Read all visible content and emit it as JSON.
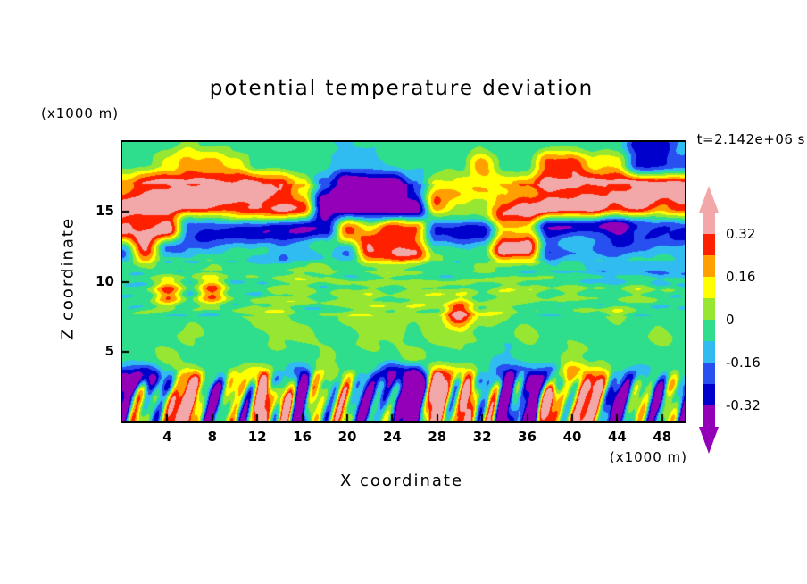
{
  "chart_data": {
    "type": "heatmap",
    "title": "potential temperature deviation",
    "time_label": "t=2.142e+06 s",
    "axis": {
      "x_label": "X coordinate",
      "y_label": "Z coordinate",
      "x_units": "(x1000 m)",
      "y_units": "(x1000 m)",
      "x_ticks": [
        4,
        8,
        12,
        16,
        20,
        24,
        28,
        32,
        36,
        40,
        44,
        48
      ],
      "y_ticks": [
        5,
        10,
        15
      ],
      "x_range": [
        0,
        50
      ],
      "y_range": [
        0,
        20
      ]
    },
    "colorbar_labels": [
      "0.32",
      "0.16",
      "0",
      "-0.16",
      "-0.32"
    ],
    "levels": [
      -0.4,
      -0.32,
      -0.24,
      -0.16,
      -0.08,
      0,
      0.08,
      0.16,
      0.24,
      0.32,
      0.4
    ],
    "level_colors": [
      "#9400B8",
      "#0000CC",
      "#2850F0",
      "#30BCF0",
      "#2EDE8C",
      "#96E632",
      "#FFFF00",
      "#FFA000",
      "#FF2000",
      "#F2A8A8"
    ],
    "x": [
      0,
      2,
      4,
      6,
      8,
      10,
      12,
      14,
      16,
      18,
      20,
      22,
      24,
      26,
      28,
      30,
      32,
      34,
      36,
      38,
      40,
      42,
      44,
      46,
      48,
      50
    ],
    "z": [
      20,
      18.46,
      16.92,
      15.38,
      13.85,
      12.31,
      10.77,
      9.23,
      7.69,
      6.15,
      4.62,
      3.08,
      1.54,
      0
    ],
    "values": [
      [
        -0.04,
        -0.04,
        -0.04,
        0.04,
        -0.04,
        -0.04,
        -0.04,
        -0.04,
        -0.04,
        -0.04,
        -0.12,
        -0.04,
        -0.04,
        -0.04,
        -0.04,
        -0.04,
        -0.04,
        -0.04,
        -0.04,
        -0.04,
        -0.04,
        -0.04,
        -0.04,
        -0.28,
        -0.28,
        -0.12
      ],
      [
        -0.04,
        -0.04,
        0.12,
        0.2,
        0.2,
        0.12,
        -0.04,
        -0.04,
        -0.04,
        -0.04,
        -0.12,
        -0.12,
        -0.04,
        -0.04,
        -0.04,
        -0.04,
        0.2,
        -0.04,
        -0.04,
        0.28,
        0.28,
        0.12,
        0.12,
        -0.28,
        -0.28,
        -0.2
      ],
      [
        0.2,
        0.36,
        0.36,
        0.36,
        0.36,
        0.36,
        0.36,
        0.28,
        0.12,
        -0.2,
        -0.44,
        -0.44,
        -0.44,
        -0.2,
        0.12,
        0.12,
        0.12,
        0.12,
        0.2,
        0.36,
        0.36,
        0.36,
        0.36,
        0.36,
        0.36,
        0.36
      ],
      [
        0.36,
        0.36,
        0.36,
        0.36,
        0.36,
        0.36,
        0.36,
        0.36,
        0.28,
        -0.44,
        -0.44,
        -0.44,
        -0.44,
        -0.44,
        0.28,
        0.12,
        0.12,
        0.28,
        0.36,
        0.36,
        0.36,
        0.36,
        0.28,
        0.36,
        0.28,
        0.36
      ],
      [
        0.36,
        0.28,
        0.36,
        -0.28,
        -0.28,
        -0.28,
        -0.28,
        -0.28,
        -0.28,
        -0.28,
        0.28,
        0.12,
        0.28,
        0.2,
        -0.28,
        -0.28,
        -0.28,
        0.2,
        0.2,
        -0.28,
        -0.28,
        -0.28,
        -0.44,
        -0.28,
        -0.28,
        -0.28
      ],
      [
        -0.12,
        0.36,
        -0.12,
        -0.12,
        -0.12,
        -0.12,
        -0.12,
        -0.2,
        -0.12,
        -0.04,
        -0.12,
        0.36,
        0.36,
        0.36,
        -0.04,
        -0.12,
        -0.12,
        0.36,
        0.36,
        -0.2,
        -0.12,
        -0.12,
        -0.2,
        -0.12,
        -0.12,
        -0.12
      ],
      [
        -0.04,
        -0.04,
        -0.04,
        -0.04,
        0.04,
        -0.04,
        -0.04,
        -0.04,
        0.04,
        0.04,
        -0.04,
        -0.04,
        0.04,
        -0.04,
        -0.04,
        -0.04,
        0.04,
        -0.04,
        -0.04,
        -0.04,
        -0.04,
        -0.12,
        -0.12,
        -0.12,
        -0.12,
        -0.12
      ],
      [
        -0.04,
        -0.04,
        0.28,
        -0.04,
        0.28,
        -0.04,
        -0.04,
        0.04,
        0.04,
        -0.04,
        0.04,
        0.04,
        -0.04,
        0.04,
        0.04,
        0.04,
        -0.04,
        0.04,
        0.04,
        -0.04,
        0.04,
        -0.04,
        -0.04,
        0.04,
        -0.04,
        -0.04
      ],
      [
        -0.04,
        -0.04,
        -0.04,
        -0.04,
        -0.04,
        -0.04,
        0.04,
        0.04,
        -0.04,
        -0.04,
        0.04,
        0.04,
        0.04,
        0.04,
        0.04,
        0.36,
        0.04,
        0.04,
        -0.04,
        -0.04,
        -0.04,
        -0.04,
        0.04,
        -0.04,
        -0.04,
        -0.04
      ],
      [
        -0.04,
        -0.04,
        -0.04,
        0.04,
        -0.04,
        -0.04,
        -0.04,
        0.04,
        0.04,
        -0.04,
        -0.04,
        0.04,
        0.04,
        -0.04,
        0.04,
        0.04,
        -0.04,
        -0.04,
        0.04,
        -0.04,
        -0.04,
        -0.04,
        -0.04,
        -0.04,
        0.04,
        -0.04
      ],
      [
        -0.04,
        -0.04,
        0.04,
        -0.04,
        -0.04,
        -0.04,
        -0.04,
        -0.04,
        -0.04,
        0.04,
        -0.04,
        -0.04,
        -0.04,
        0.04,
        -0.04,
        -0.04,
        -0.04,
        -0.12,
        -0.04,
        -0.04,
        0.04,
        -0.04,
        -0.04,
        -0.04,
        -0.04,
        -0.04
      ],
      [
        -0.28,
        -0.44,
        -0.04,
        0.2,
        -0.04,
        0.04,
        0.28,
        -0.04,
        -0.28,
        0.12,
        -0.04,
        -0.04,
        -0.44,
        -0.44,
        0.28,
        0.2,
        -0.04,
        -0.28,
        -0.28,
        -0.28,
        0.28,
        0.2,
        -0.04,
        -0.2,
        -0.04,
        -0.04
      ],
      [
        -0.12,
        -0.12,
        0.28,
        0.2,
        -0.12,
        -0.12,
        0.2,
        0.28,
        -0.28,
        0.12,
        -0.04,
        -0.12,
        -0.44,
        -0.28,
        0.28,
        0.2,
        0.12,
        -0.28,
        -0.28,
        0.2,
        0.28,
        0.12,
        -0.2,
        -0.12,
        -0.12,
        -0.12
      ],
      [
        -0.12,
        -0.04,
        0.28,
        0.2,
        -0.12,
        -0.12,
        0.2,
        0.2,
        -0.28,
        0.12,
        -0.04,
        -0.12,
        -0.28,
        -0.28,
        0.28,
        0.2,
        0.12,
        -0.28,
        -0.44,
        0.2,
        0.28,
        0.12,
        -0.2,
        -0.12,
        -0.04,
        -0.12
      ]
    ]
  }
}
